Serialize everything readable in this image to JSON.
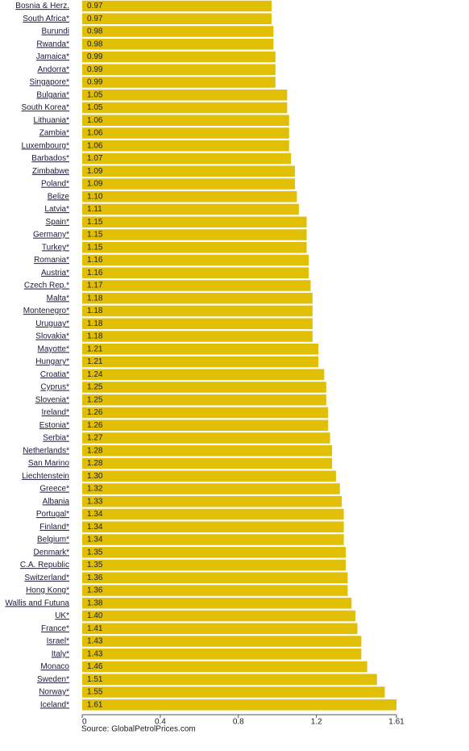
{
  "chart_data": {
    "type": "hbar",
    "categories": [
      "Bosnia & Herz.",
      "South Africa*",
      "Burundi",
      "Rwanda*",
      "Jamaica*",
      "Andorra*",
      "Singapore*",
      "Bulgaria*",
      "South Korea*",
      "Lithuania*",
      "Zambia*",
      "Luxembourg*",
      "Barbados*",
      "Zimbabwe",
      "Poland*",
      "Belize",
      "Latvia*",
      "Spain*",
      "Germany*",
      "Turkey*",
      "Romania*",
      "Austria*",
      "Czech Rep.*",
      "Malta*",
      "Montenegro*",
      "Uruguay*",
      "Slovakia*",
      "Mayotte*",
      "Hungary*",
      "Croatia*",
      "Cyprus*",
      "Slovenia*",
      "Ireland*",
      "Estonia*",
      "Serbia*",
      "Netherlands*",
      "San Marino",
      "Liechtenstein",
      "Greece*",
      "Albania",
      "Portugal*",
      "Finland*",
      "Belgium*",
      "Denmark*",
      "C.A. Republic",
      "Switzerland*",
      "Hong Kong*",
      "Wallis and Futuna",
      "UK*",
      "France*",
      "Israel*",
      "Italy*",
      "Monaco",
      "Sweden*",
      "Norway*",
      "Iceland*"
    ],
    "values": [
      0.97,
      0.97,
      0.98,
      0.98,
      0.99,
      0.99,
      0.99,
      1.05,
      1.05,
      1.06,
      1.06,
      1.06,
      1.07,
      1.09,
      1.09,
      1.1,
      1.11,
      1.15,
      1.15,
      1.15,
      1.16,
      1.16,
      1.17,
      1.18,
      1.18,
      1.18,
      1.18,
      1.21,
      1.21,
      1.24,
      1.25,
      1.25,
      1.26,
      1.26,
      1.27,
      1.28,
      1.28,
      1.3,
      1.32,
      1.33,
      1.34,
      1.34,
      1.34,
      1.35,
      1.35,
      1.36,
      1.36,
      1.38,
      1.4,
      1.41,
      1.43,
      1.43,
      1.46,
      1.51,
      1.55,
      1.61
    ],
    "value_labels": [
      "0.97",
      "0.97",
      "0.98",
      "0.98",
      "0.99",
      "0.99",
      "0.99",
      "1.05",
      "1.05",
      "1.06",
      "1.06",
      "1.06",
      "1.07",
      "1.09",
      "1.09",
      "1.10",
      "1.11",
      "1.15",
      "1.15",
      "1.15",
      "1.16",
      "1.16",
      "1.17",
      "1.18",
      "1.18",
      "1.18",
      "1.18",
      "1.21",
      "1.21",
      "1.24",
      "1.25",
      "1.25",
      "1.26",
      "1.26",
      "1.27",
      "1.28",
      "1.28",
      "1.30",
      "1.32",
      "1.33",
      "1.34",
      "1.34",
      "1.34",
      "1.35",
      "1.35",
      "1.36",
      "1.36",
      "1.38",
      "1.40",
      "1.41",
      "1.43",
      "1.43",
      "1.46",
      "1.51",
      "1.55",
      "1.61"
    ],
    "color": "#e0bf06",
    "xlim": [
      0,
      1.61
    ],
    "xticks": [
      0,
      0.4,
      0.8,
      1.2,
      1.61
    ],
    "source": "Source: GlobalPetrolPrices.com"
  }
}
